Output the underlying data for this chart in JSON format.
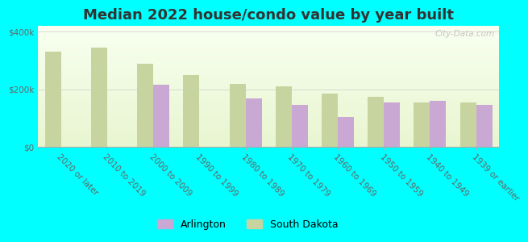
{
  "title": "Median 2022 house/condo value by year built",
  "categories": [
    "2020 or later",
    "2010 to 2019",
    "2000 to 2009",
    "1990 to 1999",
    "1980 to 1989",
    "1970 to 1979",
    "1960 to 1969",
    "1950 to 1959",
    "1940 to 1949",
    "1939 or earlier"
  ],
  "arlington_values": [
    null,
    null,
    215000,
    null,
    170000,
    145000,
    105000,
    155000,
    160000,
    145000
  ],
  "sd_values": [
    330000,
    345000,
    290000,
    250000,
    220000,
    210000,
    185000,
    175000,
    155000,
    155000
  ],
  "arlington_color": "#c9a8d4",
  "sd_color": "#c8d4a0",
  "background_color": "#00ffff",
  "ylabel_ticks": [
    "$0",
    "$200k",
    "$400k"
  ],
  "ytick_values": [
    0,
    200000,
    400000
  ],
  "ylim": [
    0,
    420000
  ],
  "bar_width": 0.35,
  "title_fontsize": 13,
  "tick_fontsize": 7.5,
  "legend_fontsize": 9,
  "watermark_text": "City-Data.com"
}
